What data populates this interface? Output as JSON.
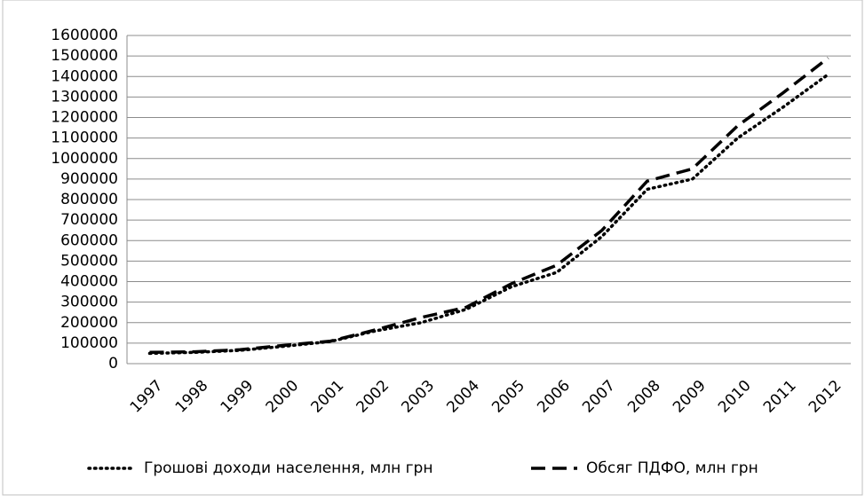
{
  "chart_data": {
    "type": "line",
    "categories": [
      "1997",
      "1998",
      "1999",
      "2000",
      "2001",
      "2002",
      "2003",
      "2004",
      "2005",
      "2006",
      "2007",
      "2008",
      "2009",
      "2010",
      "2011",
      "2012"
    ],
    "series": [
      {
        "name": "Грошові доходи населення, млн грн",
        "color": "#000000",
        "style": "dotted",
        "values": [
          50000,
          55000,
          65000,
          85000,
          108000,
          160000,
          200000,
          265000,
          375000,
          445000,
          620000,
          850000,
          900000,
          1100000,
          1250000,
          1410000
        ]
      },
      {
        "name": "Обсяг ПДФО, млн грн",
        "color": "#000000",
        "style": "dashed",
        "values": [
          55000,
          58000,
          68000,
          90000,
          110000,
          165000,
          225000,
          275000,
          390000,
          480000,
          650000,
          890000,
          950000,
          1160000,
          1320000,
          1490000
        ]
      }
    ],
    "ylim": [
      0,
      1600000
    ],
    "yticks": [
      0,
      100000,
      200000,
      300000,
      400000,
      500000,
      600000,
      700000,
      800000,
      900000,
      1000000,
      1100000,
      1200000,
      1300000,
      1400000,
      1500000,
      1600000
    ],
    "grid": true,
    "legend": "bottom"
  }
}
